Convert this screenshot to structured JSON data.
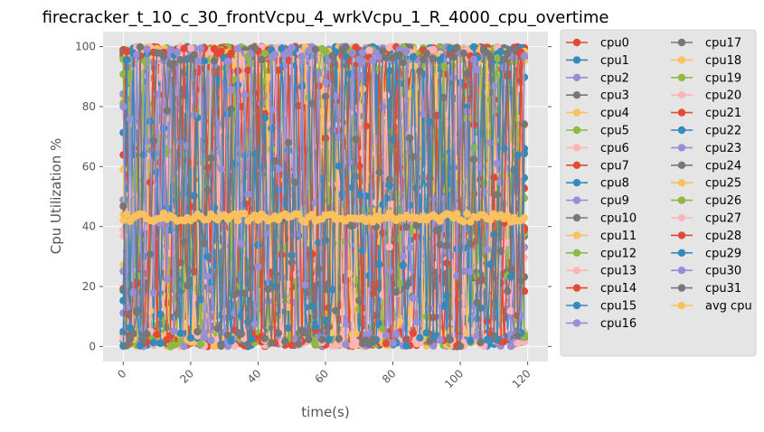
{
  "chart_data": {
    "type": "line",
    "title": "firecracker_t_10_c_30_frontVcpu_4_wrkVcpu_1_R_4000_cpu_overtime",
    "xlabel": "time(s)",
    "ylabel": "Cpu Utilization %",
    "xlim": [
      -6,
      126
    ],
    "ylim": [
      -5,
      105
    ],
    "x_ticks": [
      "0",
      "20",
      "40",
      "60",
      "80",
      "100",
      "120"
    ],
    "y_ticks": [
      "0",
      "20",
      "40",
      "60",
      "80",
      "100"
    ],
    "x_tick_values": [
      0,
      20,
      40,
      60,
      80,
      100,
      120
    ],
    "y_tick_values": [
      0,
      20,
      40,
      60,
      80,
      100
    ],
    "x_range": [
      0,
      119
    ],
    "grid": true,
    "legend_position": "outside-right",
    "legend_columns": 2,
    "series": [
      {
        "name": "cpu0",
        "color": "#E24A33",
        "behavior": "random"
      },
      {
        "name": "cpu1",
        "color": "#348ABD",
        "behavior": "random"
      },
      {
        "name": "cpu2",
        "color": "#988ED5",
        "behavior": "random"
      },
      {
        "name": "cpu3",
        "color": "#777777",
        "behavior": "random"
      },
      {
        "name": "cpu4",
        "color": "#FBC15E",
        "behavior": "random"
      },
      {
        "name": "cpu5",
        "color": "#8EBA42",
        "behavior": "random"
      },
      {
        "name": "cpu6",
        "color": "#FFB5B8",
        "behavior": "random"
      },
      {
        "name": "cpu7",
        "color": "#E24A33",
        "behavior": "random"
      },
      {
        "name": "cpu8",
        "color": "#348ABD",
        "behavior": "random"
      },
      {
        "name": "cpu9",
        "color": "#988ED5",
        "behavior": "random"
      },
      {
        "name": "cpu10",
        "color": "#777777",
        "behavior": "random"
      },
      {
        "name": "cpu11",
        "color": "#FBC15E",
        "behavior": "random"
      },
      {
        "name": "cpu12",
        "color": "#8EBA42",
        "behavior": "random"
      },
      {
        "name": "cpu13",
        "color": "#FFB5B8",
        "behavior": "random"
      },
      {
        "name": "cpu14",
        "color": "#E24A33",
        "behavior": "random"
      },
      {
        "name": "cpu15",
        "color": "#348ABD",
        "behavior": "random"
      },
      {
        "name": "cpu16",
        "color": "#988ED5",
        "behavior": "random"
      },
      {
        "name": "cpu17",
        "color": "#777777",
        "behavior": "random"
      },
      {
        "name": "cpu18",
        "color": "#FBC15E",
        "behavior": "random"
      },
      {
        "name": "cpu19",
        "color": "#8EBA42",
        "behavior": "random"
      },
      {
        "name": "cpu20",
        "color": "#FFB5B8",
        "behavior": "random"
      },
      {
        "name": "cpu21",
        "color": "#E24A33",
        "behavior": "random"
      },
      {
        "name": "cpu22",
        "color": "#348ABD",
        "behavior": "random"
      },
      {
        "name": "cpu23",
        "color": "#988ED5",
        "behavior": "random"
      },
      {
        "name": "cpu24",
        "color": "#777777",
        "behavior": "low",
        "typical_value": 22
      },
      {
        "name": "cpu25",
        "color": "#FBC15E",
        "behavior": "random"
      },
      {
        "name": "cpu26",
        "color": "#8EBA42",
        "behavior": "random"
      },
      {
        "name": "cpu27",
        "color": "#FFB5B8",
        "behavior": "random"
      },
      {
        "name": "cpu28",
        "color": "#E24A33",
        "behavior": "random"
      },
      {
        "name": "cpu29",
        "color": "#348ABD",
        "behavior": "random"
      },
      {
        "name": "cpu30",
        "color": "#988ED5",
        "behavior": "random"
      },
      {
        "name": "cpu31",
        "color": "#777777",
        "behavior": "random"
      },
      {
        "name": "avg cpu",
        "color": "#FBC15E",
        "behavior": "flat",
        "typical_value": 43
      }
    ]
  }
}
